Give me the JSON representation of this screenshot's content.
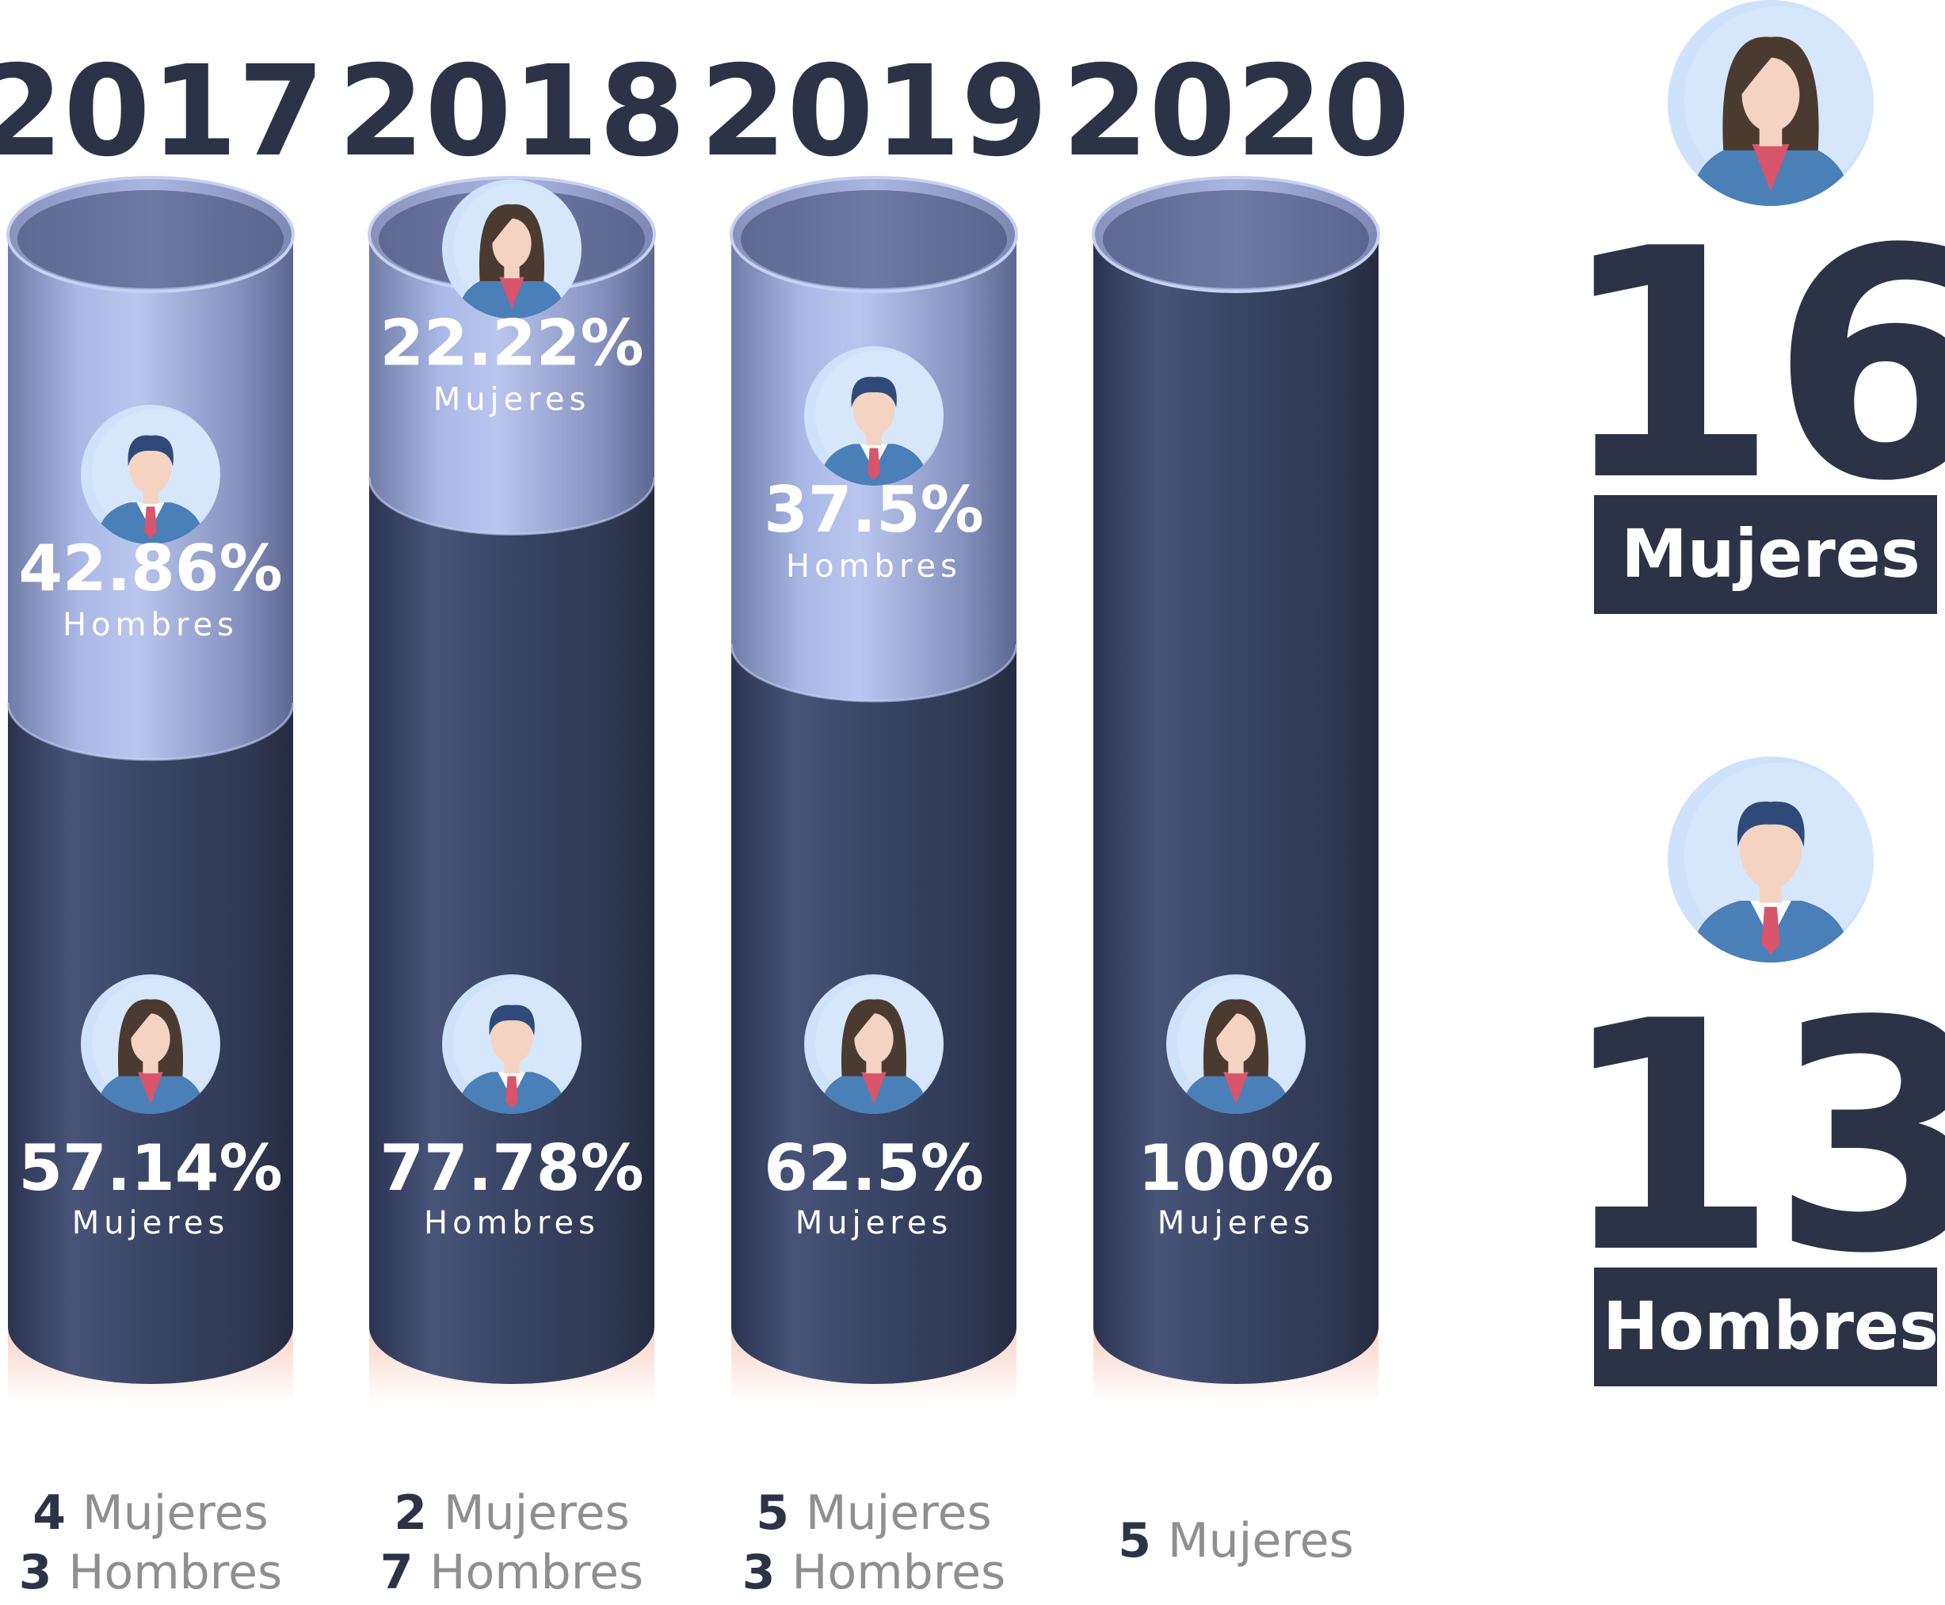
{
  "colors": {
    "navy": "#2c3347",
    "cylinder_dark": "#3a4565",
    "cylinder_light": "#a9b8e6",
    "glow": "#f7b7a3",
    "count_gray": "#8f8f8f",
    "avatar_bg": "#cfe2fb",
    "suit": "#4a7fb8",
    "tie": "#d8556b",
    "skin": "#f4d3c2",
    "hair_woman": "#4b3a2f",
    "hair_man": "#2f4a78"
  },
  "chart_data": {
    "type": "bar",
    "title": "",
    "categories": [
      "2017",
      "2018",
      "2019",
      "2020"
    ],
    "series": [
      {
        "name": "Mujeres",
        "values": [
          57.14,
          22.22,
          62.5,
          100
        ]
      },
      {
        "name": "Hombres",
        "values": [
          42.86,
          77.78,
          37.5,
          0
        ]
      }
    ],
    "ylim": [
      0,
      100
    ],
    "columns": [
      {
        "year": "2017",
        "top": {
          "pct": 42.86,
          "pct_label": "42.86%",
          "label": "Hombres",
          "avatar": "man-avatar-icon"
        },
        "bottom": {
          "pct": 57.14,
          "pct_label": "57.14%",
          "label": "Mujeres",
          "avatar": "woman-avatar-icon"
        },
        "counts": [
          {
            "num": "4",
            "label": "Mujeres"
          },
          {
            "num": "3",
            "label": "Hombres"
          }
        ]
      },
      {
        "year": "2018",
        "top": {
          "pct": 22.22,
          "pct_label": "22.22%",
          "label": "Mujeres",
          "avatar": "woman-avatar-icon"
        },
        "bottom": {
          "pct": 77.78,
          "pct_label": "77.78%",
          "label": "Hombres",
          "avatar": "man-avatar-icon"
        },
        "counts": [
          {
            "num": "2",
            "label": "Mujeres"
          },
          {
            "num": "7",
            "label": "Hombres"
          }
        ]
      },
      {
        "year": "2019",
        "top": {
          "pct": 37.5,
          "pct_label": "37.5%",
          "label": "Hombres",
          "avatar": "man-avatar-icon"
        },
        "bottom": {
          "pct": 62.5,
          "pct_label": "62.5%",
          "label": "Mujeres",
          "avatar": "woman-avatar-icon"
        },
        "counts": [
          {
            "num": "5",
            "label": "Mujeres"
          },
          {
            "num": "3",
            "label": "Hombres"
          }
        ]
      },
      {
        "year": "2020",
        "top": null,
        "bottom": {
          "pct": 100,
          "pct_label": "100%",
          "label": "Mujeres",
          "avatar": "woman-avatar-icon"
        },
        "counts": [
          {
            "num": "5",
            "label": "Mujeres"
          }
        ]
      }
    ]
  },
  "totals": [
    {
      "number": "16",
      "label": "Mujeres",
      "avatar": "woman-avatar-icon"
    },
    {
      "number": "13",
      "label": "Hombres",
      "avatar": "man-avatar-icon"
    }
  ]
}
